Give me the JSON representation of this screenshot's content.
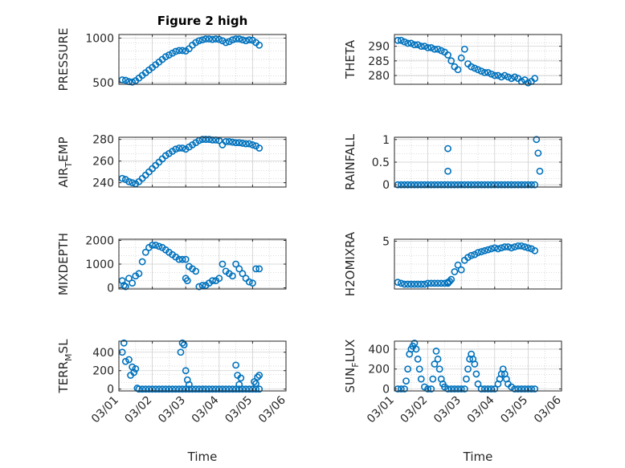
{
  "chart_data": [
    {
      "type": "scatter",
      "title": "Figure 2 high",
      "ylabel": "PRESSURE",
      "ylim": [
        480,
        1040
      ],
      "yticks": [
        500,
        1000
      ],
      "xlim": [
        0,
        5
      ],
      "xticklabels": [],
      "xlabel": "",
      "grid": true,
      "color": "#0072BD",
      "x": [
        0.1,
        0.2,
        0.3,
        0.4,
        0.5,
        0.6,
        0.7,
        0.8,
        0.9,
        1.0,
        1.1,
        1.2,
        1.3,
        1.4,
        1.5,
        1.6,
        1.7,
        1.8,
        1.9,
        2.0,
        2.1,
        2.2,
        2.3,
        2.4,
        2.5,
        2.6,
        2.7,
        2.8,
        2.9,
        3.0,
        3.1,
        3.2,
        3.3,
        3.4,
        3.5,
        3.6,
        3.7,
        3.8,
        3.9,
        4.0,
        4.1,
        4.2
      ],
      "values": [
        530,
        525,
        510,
        505,
        520,
        550,
        580,
        610,
        640,
        670,
        700,
        730,
        760,
        790,
        810,
        830,
        850,
        860,
        860,
        855,
        880,
        920,
        950,
        970,
        980,
        990,
        990,
        985,
        990,
        985,
        970,
        950,
        960,
        980,
        990,
        990,
        980,
        970,
        980,
        975,
        950,
        920
      ]
    },
    {
      "type": "scatter",
      "title": "",
      "ylabel": "THETA",
      "ylim": [
        277,
        294
      ],
      "yticks": [
        280,
        285,
        290
      ],
      "xlim": [
        0,
        5
      ],
      "xticklabels": [],
      "xlabel": "",
      "grid": true,
      "color": "#0072BD",
      "x": [
        0.1,
        0.2,
        0.3,
        0.4,
        0.5,
        0.6,
        0.7,
        0.8,
        0.9,
        1.0,
        1.1,
        1.2,
        1.3,
        1.4,
        1.5,
        1.6,
        1.7,
        1.8,
        1.9,
        2.0,
        2.1,
        2.2,
        2.3,
        2.4,
        2.5,
        2.6,
        2.7,
        2.8,
        2.9,
        3.0,
        3.1,
        3.2,
        3.3,
        3.4,
        3.5,
        3.6,
        3.7,
        3.8,
        3.9,
        4.0,
        4.1,
        4.2
      ],
      "values": [
        292,
        292,
        291.5,
        291,
        291,
        290.5,
        290.5,
        290,
        290,
        289.5,
        289.5,
        289,
        289,
        288.5,
        288,
        287,
        285,
        283,
        282,
        286,
        289,
        284,
        283,
        282.5,
        282,
        281.5,
        281,
        281,
        280.5,
        280,
        280,
        279.5,
        280,
        279.5,
        279,
        279.5,
        279,
        278,
        278.5,
        277.5,
        278,
        279
      ]
    },
    {
      "type": "scatter",
      "title": "",
      "ylabel": "AIR_TEMP",
      "ylim": [
        236,
        282
      ],
      "yticks": [
        240,
        260,
        280
      ],
      "xlim": [
        0,
        5
      ],
      "xticklabels": [],
      "xlabel": "",
      "grid": true,
      "color": "#0072BD",
      "x": [
        0.1,
        0.2,
        0.3,
        0.4,
        0.5,
        0.6,
        0.7,
        0.8,
        0.9,
        1.0,
        1.1,
        1.2,
        1.3,
        1.4,
        1.5,
        1.6,
        1.7,
        1.8,
        1.9,
        2.0,
        2.1,
        2.2,
        2.3,
        2.4,
        2.5,
        2.6,
        2.7,
        2.8,
        2.9,
        3.0,
        3.1,
        3.2,
        3.3,
        3.4,
        3.5,
        3.6,
        3.7,
        3.8,
        3.9,
        4.0,
        4.1,
        4.2
      ],
      "values": [
        244,
        243,
        241,
        240,
        239,
        241,
        244,
        247,
        250,
        253,
        256,
        259,
        262,
        265,
        267,
        269,
        271,
        272,
        272,
        271,
        273,
        275,
        277,
        279,
        280,
        280,
        280,
        279.5,
        279.5,
        279,
        275,
        278,
        278,
        277.5,
        277,
        277,
        276.5,
        276,
        276,
        275,
        274,
        272
      ]
    },
    {
      "type": "scatter",
      "title": "",
      "ylabel": "RAINFALL",
      "ylim": [
        -0.05,
        1.05
      ],
      "yticks": [
        0,
        0.5,
        1
      ],
      "xlim": [
        0,
        5
      ],
      "xticklabels": [],
      "xlabel": "",
      "grid": true,
      "color": "#0072BD",
      "x": [
        0.1,
        0.2,
        0.3,
        0.4,
        0.5,
        0.6,
        0.7,
        0.8,
        0.9,
        1.0,
        1.1,
        1.2,
        1.3,
        1.4,
        1.5,
        1.6,
        1.7,
        1.8,
        1.9,
        2.0,
        2.1,
        2.2,
        2.3,
        2.4,
        2.5,
        2.6,
        2.7,
        2.8,
        2.9,
        3.0,
        3.1,
        3.2,
        3.3,
        3.4,
        3.5,
        3.6,
        3.7,
        3.8,
        3.9,
        4.0,
        4.1,
        4.2,
        4.25,
        4.3,
        4.35,
        1.6,
        1.6
      ],
      "values": [
        0,
        0,
        0,
        0,
        0,
        0,
        0,
        0,
        0,
        0,
        0,
        0,
        0,
        0,
        0,
        0,
        0,
        0,
        0,
        0,
        0,
        0,
        0,
        0,
        0,
        0,
        0,
        0,
        0,
        0,
        0,
        0,
        0,
        0,
        0,
        0,
        0,
        0,
        0,
        0,
        0,
        0,
        1,
        0.7,
        0.3,
        0.8,
        0.3
      ]
    },
    {
      "type": "scatter",
      "title": "",
      "ylabel": "MIXDEPTH",
      "ylim": [
        -50,
        2050
      ],
      "yticks": [
        0,
        1000,
        2000
      ],
      "xlim": [
        0,
        5
      ],
      "xticklabels": [],
      "xlabel": "",
      "grid": true,
      "color": "#0072BD",
      "x": [
        0.1,
        0.15,
        0.2,
        0.3,
        0.4,
        0.5,
        0.6,
        0.7,
        0.8,
        0.9,
        1.0,
        1.1,
        1.2,
        1.3,
        1.4,
        1.5,
        1.6,
        1.7,
        1.8,
        1.9,
        2.0,
        2.1,
        2.2,
        2.3,
        2.4,
        2.5,
        2.6,
        2.7,
        2.8,
        2.9,
        3.0,
        3.1,
        3.2,
        3.3,
        3.4,
        3.5,
        3.6,
        3.7,
        3.8,
        3.9,
        4.0,
        4.1,
        4.2,
        2.0,
        2.05
      ],
      "values": [
        300,
        100,
        50,
        400,
        200,
        500,
        600,
        1100,
        1500,
        1700,
        1800,
        1800,
        1750,
        1700,
        1600,
        1500,
        1400,
        1300,
        1200,
        1200,
        1200,
        900,
        800,
        700,
        50,
        100,
        100,
        200,
        300,
        300,
        400,
        1000,
        700,
        600,
        500,
        1000,
        800,
        600,
        400,
        250,
        200,
        800,
        800,
        400,
        300
      ]
    },
    {
      "type": "scatter",
      "title": "",
      "ylabel": "H2OMIXRA",
      "ylim": [
        0,
        5.2
      ],
      "yticks": [
        5
      ],
      "xlim": [
        0,
        5
      ],
      "xticklabels": [],
      "xlabel": "",
      "grid": true,
      "color": "#0072BD",
      "x": [
        0.1,
        0.2,
        0.3,
        0.4,
        0.5,
        0.6,
        0.7,
        0.8,
        0.9,
        1.0,
        1.1,
        1.2,
        1.3,
        1.4,
        1.5,
        1.6,
        1.7,
        1.8,
        1.9,
        2.0,
        2.1,
        2.2,
        2.3,
        2.4,
        2.5,
        2.6,
        2.7,
        2.8,
        2.9,
        3.0,
        3.1,
        3.2,
        3.3,
        3.4,
        3.5,
        3.6,
        3.7,
        3.8,
        3.9,
        4.0,
        4.1,
        4.2,
        1.6,
        1.65
      ],
      "values": [
        0.7,
        0.6,
        0.5,
        0.5,
        0.5,
        0.5,
        0.5,
        0.5,
        0.5,
        0.6,
        0.6,
        0.6,
        0.6,
        0.6,
        0.6,
        0.7,
        1.0,
        1.8,
        2.5,
        2.0,
        3.0,
        3.3,
        3.5,
        3.6,
        3.8,
        3.9,
        4.0,
        4.1,
        4.2,
        4.3,
        4.2,
        4.3,
        4.4,
        4.4,
        4.3,
        4.4,
        4.5,
        4.5,
        4.4,
        4.3,
        4.2,
        4.0,
        0.6,
        0.8
      ]
    },
    {
      "type": "scatter",
      "title": "",
      "ylabel": "TERR_MSL",
      "ylim": [
        -20,
        520
      ],
      "yticks": [
        0,
        200,
        400
      ],
      "xlim": [
        0,
        5
      ],
      "xticklabels": [
        "03/01",
        "03/02",
        "03/03",
        "03/04",
        "03/05",
        "03/06"
      ],
      "xlabel": "Time",
      "grid": true,
      "color": "#0072BD",
      "x": [
        0.1,
        0.15,
        0.2,
        0.3,
        0.35,
        0.4,
        0.45,
        0.5,
        0.55,
        0.6,
        0.7,
        0.8,
        0.9,
        1.0,
        1.1,
        1.2,
        1.3,
        1.4,
        1.5,
        1.6,
        1.7,
        1.8,
        1.9,
        2.0,
        2.1,
        2.2,
        2.3,
        2.4,
        2.5,
        2.6,
        2.7,
        2.8,
        2.9,
        3.0,
        3.1,
        3.2,
        3.3,
        3.4,
        3.5,
        3.6,
        3.7,
        3.8,
        3.9,
        4.0,
        4.1,
        4.2,
        1.85,
        1.9,
        1.95,
        2.0,
        2.05,
        2.1,
        3.5,
        3.55,
        3.6,
        3.65,
        4.05,
        4.1,
        4.15,
        4.2
      ],
      "values": [
        400,
        500,
        300,
        320,
        150,
        240,
        180,
        220,
        10,
        0,
        0,
        0,
        0,
        0,
        0,
        0,
        0,
        0,
        0,
        0,
        0,
        0,
        0,
        0,
        0,
        0,
        0,
        0,
        0,
        0,
        0,
        0,
        0,
        0,
        0,
        0,
        0,
        0,
        0,
        0,
        0,
        0,
        0,
        0,
        0,
        0,
        400,
        500,
        480,
        200,
        100,
        50,
        260,
        150,
        50,
        120,
        80,
        60,
        130,
        150
      ]
    },
    {
      "type": "scatter",
      "title": "",
      "ylabel": "SUN_FLUX",
      "ylim": [
        -20,
        480
      ],
      "yticks": [
        0,
        200,
        400
      ],
      "xlim": [
        0,
        5
      ],
      "xticklabels": [
        "03/01",
        "03/02",
        "03/03",
        "03/04",
        "03/05",
        "03/06"
      ],
      "xlabel": "Time",
      "grid": true,
      "color": "#0072BD",
      "x": [
        0.1,
        0.2,
        0.3,
        0.35,
        0.4,
        0.45,
        0.5,
        0.55,
        0.6,
        0.65,
        0.7,
        0.75,
        0.8,
        0.9,
        1.0,
        1.1,
        1.15,
        1.2,
        1.25,
        1.3,
        1.35,
        1.4,
        1.45,
        1.5,
        1.6,
        1.7,
        1.8,
        1.9,
        2.0,
        2.1,
        2.15,
        2.2,
        2.25,
        2.3,
        2.35,
        2.4,
        2.45,
        2.5,
        2.6,
        2.7,
        2.8,
        2.9,
        3.0,
        3.1,
        3.15,
        3.2,
        3.25,
        3.3,
        3.35,
        3.4,
        3.5,
        3.6,
        3.7,
        3.8,
        3.9,
        4.0,
        4.1,
        4.2
      ],
      "values": [
        0,
        0,
        0,
        80,
        200,
        350,
        400,
        430,
        460,
        400,
        300,
        200,
        100,
        20,
        0,
        0,
        100,
        250,
        380,
        300,
        200,
        100,
        50,
        20,
        0,
        0,
        0,
        0,
        0,
        0,
        100,
        200,
        300,
        350,
        300,
        250,
        150,
        50,
        0,
        0,
        0,
        0,
        0,
        50,
        100,
        150,
        200,
        150,
        100,
        50,
        20,
        0,
        0,
        0,
        0,
        0,
        0,
        0
      ]
    }
  ]
}
